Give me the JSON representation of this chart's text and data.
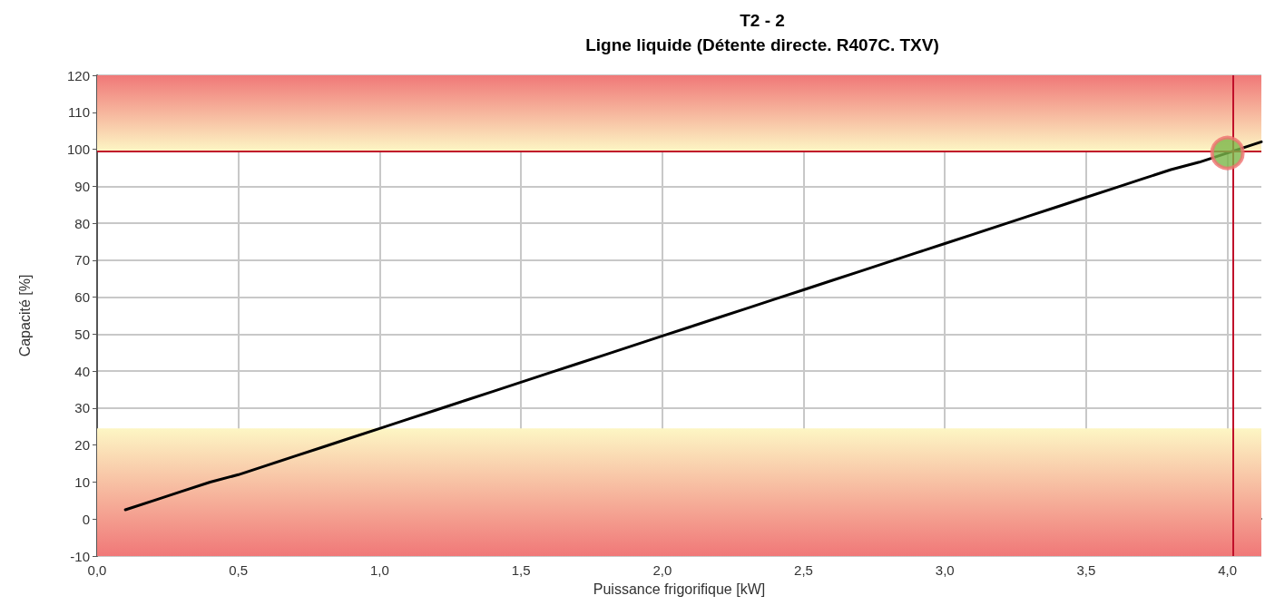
{
  "chart_data": {
    "type": "line",
    "title": "T2 - 2",
    "subtitle": "Ligne liquide (Détente directe. R407C. TXV)",
    "xlabel": "Puissance frigorifique [kW]",
    "ylabel": "Capacité [%]",
    "xlim": [
      0,
      4.12
    ],
    "xticks": [
      {
        "value": 0,
        "label": "0,0"
      },
      {
        "value": 0.5,
        "label": "0,5"
      },
      {
        "value": 1,
        "label": "1,0"
      },
      {
        "value": 1.5,
        "label": "1,5"
      },
      {
        "value": 2,
        "label": "2,0"
      },
      {
        "value": 2.5,
        "label": "2,5"
      },
      {
        "value": 3,
        "label": "3,0"
      },
      {
        "value": 3.5,
        "label": "3,5"
      },
      {
        "value": 4,
        "label": "4,0"
      }
    ],
    "ylim": [
      -10,
      120
    ],
    "yticks": [
      -10,
      0,
      10,
      20,
      30,
      40,
      50,
      60,
      70,
      80,
      90,
      100,
      110,
      120
    ],
    "series": [
      {
        "color": "#000000",
        "marker": "none",
        "x": [
          0.1,
          0.2,
          0.3,
          0.4,
          0.5,
          0.6,
          0.7,
          0.8,
          0.9,
          1.0,
          1.1,
          1.2,
          1.3,
          1.4,
          1.5,
          1.6,
          1.7,
          1.8,
          1.9,
          2.0,
          2.1,
          2.2,
          2.3,
          2.4,
          2.5,
          2.6,
          2.7,
          2.8,
          2.9,
          3.0,
          3.1,
          3.2,
          3.3,
          3.4,
          3.5,
          3.6,
          3.7,
          3.8,
          3.9,
          4.12
        ],
        "values": [
          2.5,
          5,
          7.5,
          10,
          12,
          14.5,
          17,
          19.5,
          22,
          24.5,
          27,
          29.5,
          32,
          34.5,
          37,
          39.5,
          42,
          44.5,
          47,
          49.5,
          52,
          54.5,
          57,
          59.5,
          62,
          64.5,
          67,
          69.5,
          72,
          74.5,
          77,
          79.5,
          82,
          84.5,
          87,
          89.5,
          92,
          94.5,
          96.5,
          102
        ]
      },
      {
        "type": "scatter",
        "marker": "circle",
        "color": "#7ab648",
        "x": [
          4.0
        ],
        "values": [
          99
        ]
      }
    ],
    "ref_lines": [
      {
        "axis": "y",
        "value": 99.5,
        "color": "#c0102a"
      },
      {
        "axis": "x",
        "value": 4.02,
        "color": "#c0102a"
      }
    ],
    "bands": [
      {
        "axis": "y",
        "from": 99.5,
        "to": 120,
        "color": "#f07878"
      },
      {
        "axis": "y",
        "from": -10,
        "to": 24.5,
        "color": "#f07878"
      }
    ],
    "grid": true,
    "line_style": "solid"
  }
}
